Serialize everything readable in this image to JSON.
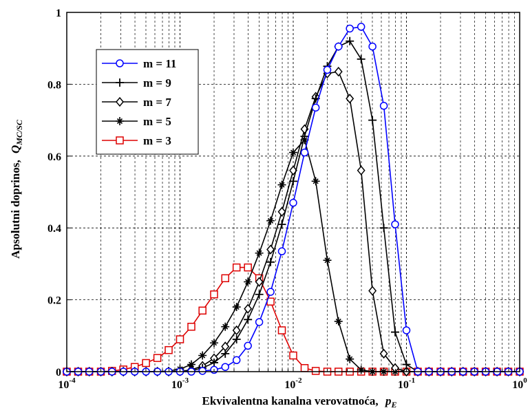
{
  "chart_data": {
    "type": "line",
    "title": "",
    "xlabel": "Ekvivalentna kanalna verovatnoća,",
    "xlabel_symbol": "p",
    "xlabel_symbol_sub": "E",
    "ylabel": "Apsolutni doprinos,",
    "ylabel_symbol": "Q",
    "ylabel_symbol_sub": "MC/SC",
    "x_scale": "log",
    "xlim": [
      0.0001,
      1
    ],
    "ylim": [
      0,
      1
    ],
    "x_ticks": [
      {
        "base": "10",
        "exp": "-4"
      },
      {
        "base": "10",
        "exp": "-3"
      },
      {
        "base": "10",
        "exp": "-2"
      },
      {
        "base": "10",
        "exp": "-1"
      },
      {
        "base": "10",
        "exp": "0"
      }
    ],
    "y_ticks": [
      "0",
      "0.2",
      "0.4",
      "0.6",
      "0.8",
      "1"
    ],
    "y_tick_values": [
      0,
      0.2,
      0.4,
      0.6,
      0.8,
      1
    ],
    "grid": true,
    "legend_position": "top-left",
    "x": [
      0.0001,
      0.000126,
      0.000158,
      0.0002,
      0.000251,
      0.000316,
      0.000398,
      0.000501,
      0.000631,
      0.000794,
      0.001,
      0.00126,
      0.00158,
      0.002,
      0.00251,
      0.00316,
      0.00398,
      0.00501,
      0.00631,
      0.00794,
      0.01,
      0.0126,
      0.0158,
      0.02,
      0.0251,
      0.0316,
      0.0398,
      0.0501,
      0.0631,
      0.0794,
      0.1,
      0.126,
      0.158,
      0.2,
      0.251,
      0.316,
      0.398,
      0.501,
      0.631,
      0.794,
      1
    ],
    "series": [
      {
        "name": "m = 11",
        "color": "#0000ff",
        "marker": "circle",
        "values": [
          0,
          0,
          0,
          0,
          0,
          0,
          0,
          0,
          0,
          0,
          0,
          0,
          0.002,
          0.005,
          0.013,
          0.032,
          0.072,
          0.138,
          0.222,
          0.335,
          0.47,
          0.61,
          0.735,
          0.84,
          0.905,
          0.955,
          0.96,
          0.905,
          0.74,
          0.41,
          0.115,
          0,
          0,
          0,
          0,
          0,
          0,
          0,
          0,
          0,
          0
        ]
      },
      {
        "name": "m = 9",
        "color": "#000000",
        "marker": "plus",
        "values": [
          0,
          0,
          0,
          0,
          0,
          0,
          0,
          0,
          0,
          0,
          0,
          0.003,
          0.01,
          0.025,
          0.05,
          0.09,
          0.145,
          0.215,
          0.305,
          0.41,
          0.53,
          0.655,
          0.76,
          0.85,
          0.905,
          0.92,
          0.87,
          0.7,
          0.4,
          0.11,
          0.02,
          0,
          0,
          0,
          0,
          0,
          0,
          0,
          0,
          0,
          0
        ]
      },
      {
        "name": "m = 7",
        "color": "#000000",
        "marker": "diamond",
        "values": [
          0,
          0,
          0,
          0,
          0,
          0,
          0,
          0,
          0,
          0,
          0.001,
          0.005,
          0.016,
          0.037,
          0.07,
          0.115,
          0.175,
          0.25,
          0.34,
          0.445,
          0.56,
          0.675,
          0.765,
          0.83,
          0.835,
          0.76,
          0.56,
          0.225,
          0.05,
          0.01,
          0,
          0,
          0,
          0,
          0,
          0,
          0,
          0,
          0,
          0,
          0
        ]
      },
      {
        "name": "m = 5",
        "color": "#000000",
        "marker": "star",
        "values": [
          0,
          0,
          0,
          0,
          0,
          0,
          0,
          0,
          0,
          0.002,
          0.007,
          0.02,
          0.045,
          0.08,
          0.125,
          0.18,
          0.25,
          0.33,
          0.42,
          0.52,
          0.61,
          0.645,
          0.53,
          0.31,
          0.14,
          0.035,
          0.005,
          0,
          0,
          0,
          0,
          0,
          0,
          0,
          0,
          0,
          0,
          0,
          0,
          0,
          0
        ]
      },
      {
        "name": "m = 3",
        "color": "#dd0000",
        "marker": "square",
        "values": [
          0,
          0,
          0,
          0,
          0.002,
          0.006,
          0.013,
          0.024,
          0.038,
          0.06,
          0.09,
          0.125,
          0.17,
          0.215,
          0.26,
          0.29,
          0.29,
          0.26,
          0.195,
          0.115,
          0.045,
          0.01,
          0.002,
          0,
          0,
          0,
          0,
          0,
          0,
          0,
          0,
          0,
          0,
          0,
          0,
          0,
          0,
          0,
          0,
          0,
          0
        ]
      }
    ]
  }
}
